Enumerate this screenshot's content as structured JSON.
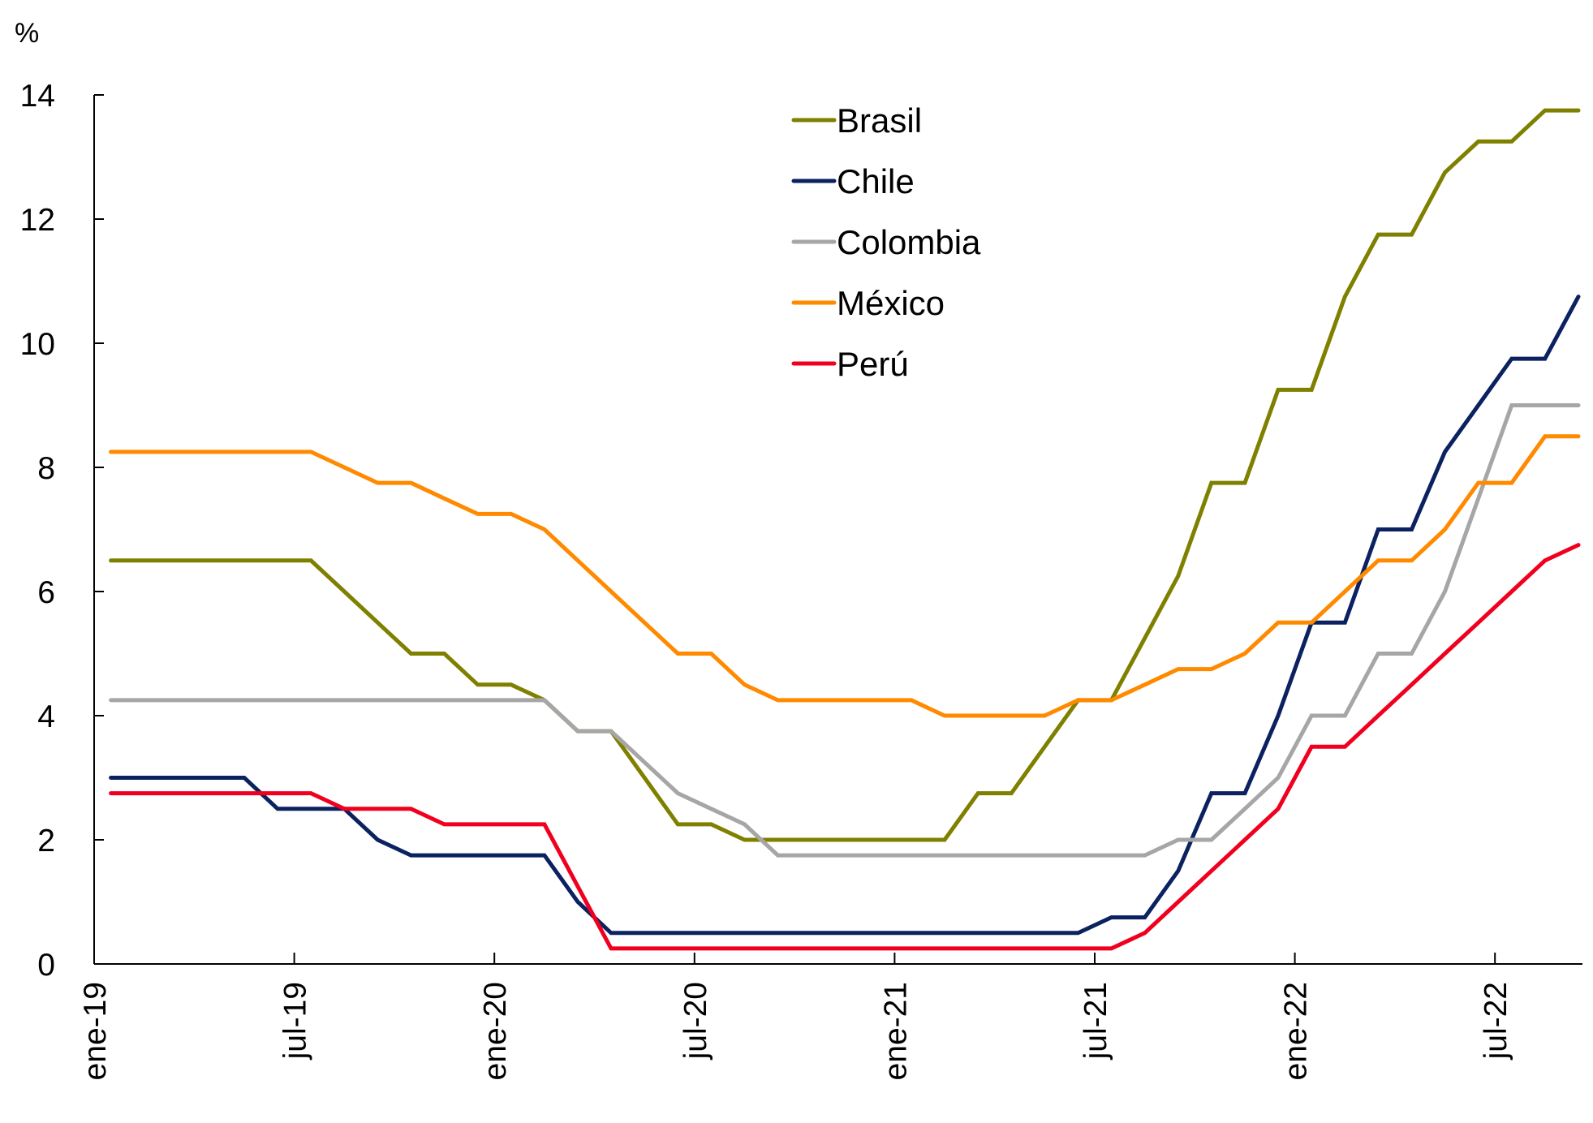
{
  "chart_data": {
    "type": "line",
    "title": "",
    "xlabel": "",
    "ylabel": "%",
    "ylim": [
      0,
      14
    ],
    "yticks": [
      0,
      2,
      4,
      6,
      8,
      10,
      12,
      14
    ],
    "grid": false,
    "legend_position": "top-center",
    "x_tick_labels": [
      "ene-19",
      "jul-19",
      "ene-20",
      "jul-20",
      "ene-21",
      "jul-21",
      "ene-22",
      "jul-22"
    ],
    "x": [
      "ene-19",
      "feb-19",
      "mar-19",
      "abr-19",
      "may-19",
      "jun-19",
      "jul-19",
      "ago-19",
      "sep-19",
      "oct-19",
      "nov-19",
      "dic-19",
      "ene-20",
      "feb-20",
      "mar-20",
      "abr-20",
      "may-20",
      "jun-20",
      "jul-20",
      "ago-20",
      "sep-20",
      "oct-20",
      "nov-20",
      "dic-20",
      "ene-21",
      "feb-21",
      "mar-21",
      "abr-21",
      "may-21",
      "jun-21",
      "jul-21",
      "ago-21",
      "sep-21",
      "oct-21",
      "nov-21",
      "dic-21",
      "ene-22",
      "feb-22",
      "mar-22",
      "abr-22",
      "may-22",
      "jun-22",
      "jul-22",
      "ago-22",
      "sep-22"
    ],
    "series": [
      {
        "name": "Brasil",
        "color": "#7f8000",
        "values": [
          6.5,
          6.5,
          6.5,
          6.5,
          6.5,
          6.5,
          6.5,
          6.0,
          5.5,
          5.0,
          5.0,
          4.5,
          4.5,
          4.25,
          3.75,
          3.75,
          3.0,
          2.25,
          2.25,
          2.0,
          2.0,
          2.0,
          2.0,
          2.0,
          2.0,
          2.0,
          2.75,
          2.75,
          3.5,
          4.25,
          4.25,
          5.25,
          6.25,
          7.75,
          7.75,
          9.25,
          9.25,
          10.75,
          11.75,
          11.75,
          12.75,
          13.25,
          13.25,
          13.75,
          13.75
        ]
      },
      {
        "name": "Chile",
        "color": "#0b2160",
        "values": [
          3.0,
          3.0,
          3.0,
          3.0,
          3.0,
          2.5,
          2.5,
          2.5,
          2.0,
          1.75,
          1.75,
          1.75,
          1.75,
          1.75,
          1.0,
          0.5,
          0.5,
          0.5,
          0.5,
          0.5,
          0.5,
          0.5,
          0.5,
          0.5,
          0.5,
          0.5,
          0.5,
          0.5,
          0.5,
          0.5,
          0.75,
          0.75,
          1.5,
          2.75,
          2.75,
          4.0,
          5.5,
          5.5,
          7.0,
          7.0,
          8.25,
          9.0,
          9.75,
          9.75,
          10.75
        ]
      },
      {
        "name": "Colombia",
        "color": "#a6a6a6",
        "values": [
          4.25,
          4.25,
          4.25,
          4.25,
          4.25,
          4.25,
          4.25,
          4.25,
          4.25,
          4.25,
          4.25,
          4.25,
          4.25,
          4.25,
          3.75,
          3.75,
          3.25,
          2.75,
          2.5,
          2.25,
          1.75,
          1.75,
          1.75,
          1.75,
          1.75,
          1.75,
          1.75,
          1.75,
          1.75,
          1.75,
          1.75,
          1.75,
          2.0,
          2.0,
          2.5,
          3.0,
          4.0,
          4.0,
          5.0,
          5.0,
          6.0,
          7.5,
          9.0,
          9.0,
          9.0
        ]
      },
      {
        "name": "México",
        "color": "#ff8a00",
        "values": [
          8.25,
          8.25,
          8.25,
          8.25,
          8.25,
          8.25,
          8.25,
          8.0,
          7.75,
          7.75,
          7.5,
          7.25,
          7.25,
          7.0,
          6.5,
          6.0,
          5.5,
          5.0,
          5.0,
          4.5,
          4.25,
          4.25,
          4.25,
          4.25,
          4.25,
          4.0,
          4.0,
          4.0,
          4.0,
          4.25,
          4.25,
          4.5,
          4.75,
          4.75,
          5.0,
          5.5,
          5.5,
          6.0,
          6.5,
          6.5,
          7.0,
          7.75,
          7.75,
          8.5,
          8.5
        ]
      },
      {
        "name": "Perú",
        "color": "#f0001e",
        "values": [
          2.75,
          2.75,
          2.75,
          2.75,
          2.75,
          2.75,
          2.75,
          2.5,
          2.5,
          2.5,
          2.25,
          2.25,
          2.25,
          2.25,
          1.25,
          0.25,
          0.25,
          0.25,
          0.25,
          0.25,
          0.25,
          0.25,
          0.25,
          0.25,
          0.25,
          0.25,
          0.25,
          0.25,
          0.25,
          0.25,
          0.25,
          0.5,
          1.0,
          1.5,
          2.0,
          2.5,
          3.5,
          3.5,
          4.0,
          4.5,
          5.0,
          5.5,
          6.0,
          6.5,
          6.75
        ]
      }
    ]
  }
}
